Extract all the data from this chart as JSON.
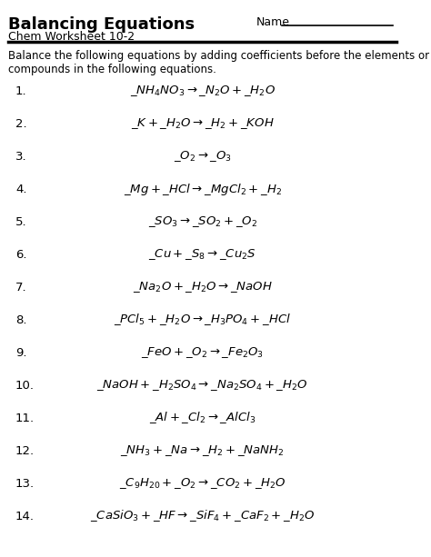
{
  "title": "Balancing Equations",
  "subtitle": "Chem Worksheet 10-2",
  "name_label": "Name",
  "instructions": "Balance the following equations by adding coefficients before the elements or\ncompounds in the following equations.",
  "equations": [
    {
      "num": "1.",
      "parts": [
        [
          "_NH",
          "4",
          "NO",
          "3",
          " → _N",
          "2",
          "O + _H",
          "2",
          "O"
        ]
      ]
    },
    {
      "num": "2.",
      "parts": [
        [
          "_K + _H",
          "2",
          "O → _H",
          "2",
          " + _KOH"
        ]
      ]
    },
    {
      "num": "3.",
      "parts": [
        [
          "_O",
          "2",
          " → _O",
          "3",
          ""
        ]
      ]
    },
    {
      "num": "4.",
      "parts": [
        [
          "_Mg + _HCl → _MgCl",
          "2",
          " + _H",
          "2",
          ""
        ]
      ]
    },
    {
      "num": "5.",
      "parts": [
        [
          "_SO",
          "3",
          " → _SO",
          "2",
          " + _O",
          "2",
          ""
        ]
      ]
    },
    {
      "num": "6.",
      "parts": [
        [
          "_Cu + _S",
          "8",
          " → _Cu",
          "2",
          "S"
        ]
      ]
    },
    {
      "num": "7.",
      "parts": [
        [
          "_Na",
          "2",
          "O + _H",
          "2",
          "O → _NaOH"
        ]
      ]
    },
    {
      "num": "8.",
      "parts": [
        [
          "_PCl",
          "5",
          " + _H",
          "2",
          "O → _H",
          "3",
          "PO",
          "4",
          " + _HCl"
        ]
      ]
    },
    {
      "num": "9.",
      "parts": [
        [
          "_FeO + _O",
          "2",
          " → _Fe",
          "2",
          "O",
          "3",
          ""
        ]
      ]
    },
    {
      "num": "10.",
      "parts": [
        [
          "_NaOH + _H",
          "2",
          "SO",
          "4",
          " → _Na",
          "2",
          "SO",
          "4",
          " + _H",
          "2",
          "O"
        ]
      ]
    },
    {
      "num": "11.",
      "parts": [
        [
          "_Al + _Cl",
          "2",
          " → _AlCl",
          "3",
          ""
        ]
      ]
    },
    {
      "num": "12.",
      "parts": [
        [
          "_NH",
          "3",
          " + _Na → _H",
          "2",
          " + _NaNH",
          "2",
          ""
        ]
      ]
    },
    {
      "num": "13.",
      "parts": [
        [
          "_C",
          "9",
          "H",
          "20",
          " + _O",
          "2",
          " → _CO",
          "2",
          " + _H",
          "2",
          "O"
        ]
      ]
    },
    {
      "num": "14.",
      "parts": [
        [
          "_CaSiO",
          "3",
          " + _HF → _SiF",
          "4",
          " + _CaF",
          "2",
          " + _H",
          "2",
          "O"
        ]
      ]
    }
  ],
  "bg_color": "#ffffff",
  "text_color": "#000000",
  "font_size_title": 13,
  "font_size_subtitle": 9,
  "font_size_instructions": 8.5,
  "font_size_equations": 9.5,
  "font_size_number": 9.5
}
